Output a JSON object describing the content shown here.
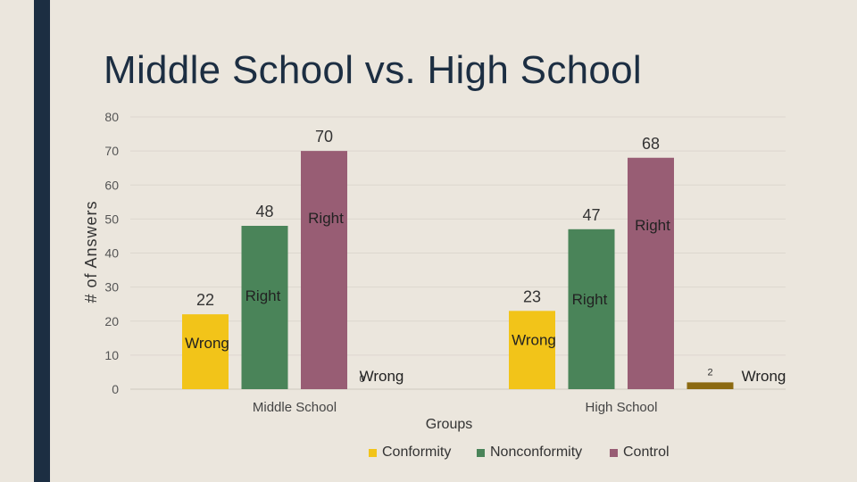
{
  "slide": {
    "title": "Middle School vs. High School"
  },
  "chart_data": {
    "type": "bar",
    "ylabel": "# of Answers",
    "xlabel": "Groups",
    "ylim": [
      0,
      80
    ],
    "yticks": [
      0,
      10,
      20,
      30,
      40,
      50,
      60,
      70,
      80
    ],
    "categories": [
      "Middle School",
      "High School"
    ],
    "series": [
      {
        "name": "Conformity",
        "color": "#f2c419",
        "values": [
          22,
          23
        ]
      },
      {
        "name": "Nonconformity",
        "color": "#4a8459",
        "values": [
          48,
          47
        ]
      },
      {
        "name": "Control",
        "color": "#985d74",
        "values": [
          70,
          68
        ]
      },
      {
        "name": "",
        "color": "#8c6a12",
        "values": [
          0,
          2
        ]
      }
    ],
    "annotations": [
      {
        "text": "Wrong",
        "category": 0,
        "series": 0
      },
      {
        "text": "Right",
        "category": 0,
        "series": 1
      },
      {
        "text": "Right",
        "category": 0,
        "series": 2
      },
      {
        "text": "Wrong",
        "category": 0,
        "series": 3
      },
      {
        "text": "Wrong",
        "category": 1,
        "series": 0
      },
      {
        "text": "Right",
        "category": 1,
        "series": 1
      },
      {
        "text": "Right",
        "category": 1,
        "series": 2
      },
      {
        "text": "Wrong",
        "category": 1,
        "series": 3
      }
    ],
    "legend_position": "bottom",
    "grid": true
  }
}
